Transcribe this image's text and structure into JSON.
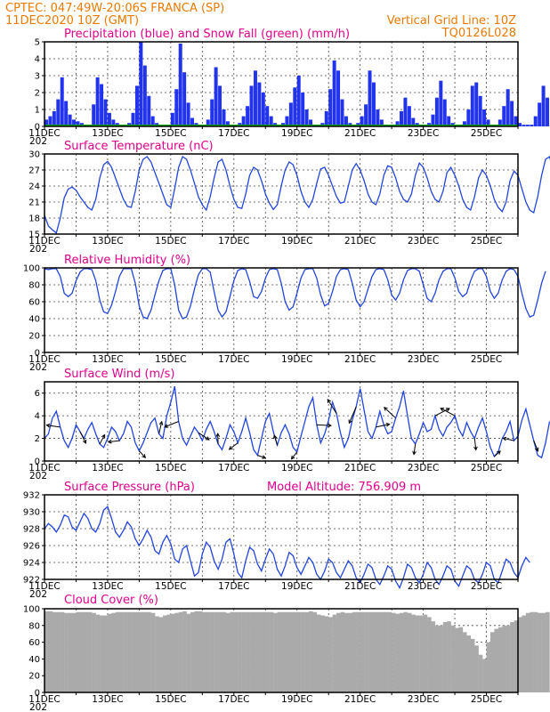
{
  "header": {
    "line1_left": "CPTEC:   047:49W-20:06S   FRANCA (SP)",
    "line2_left": "11DEC2020 10Z (GMT)",
    "line1_right": "Vertical Grid Line: 10Z",
    "line2_right": "TQ0126L028"
  },
  "x_axis": {
    "days": [
      "11DEC",
      "13DEC",
      "15DEC",
      "17DEC",
      "19DEC",
      "21DEC",
      "23DEC",
      "25DEC"
    ],
    "fragment": "202"
  },
  "colors": {
    "header": "#e87a00",
    "panel_title": "#e0008c",
    "precip": "#2233ee",
    "snow": "#00aa00",
    "line": "#2244dd",
    "cloud": "#aaaaaa"
  },
  "chart_data": [
    {
      "type": "bar",
      "name": "precipitation",
      "title": "Precipitation (blue) and Snow Fall (green) (mm/h)",
      "ylim": [
        0,
        5
      ],
      "yticks": [
        0,
        1,
        2,
        3,
        4,
        5
      ],
      "step_hours": 3,
      "values": [
        0.4,
        0.6,
        0.9,
        1.6,
        2.9,
        1.5,
        0.7,
        0.4,
        0.3,
        0.2,
        0.1,
        0.1,
        1.3,
        2.9,
        2.5,
        1.6,
        0.8,
        0.4,
        0.2,
        0.1,
        0.1,
        0.2,
        0.8,
        2.4,
        5.0,
        3.6,
        1.8,
        0.6,
        0.2,
        0.1,
        0.1,
        0.1,
        0.8,
        2.2,
        4.9,
        3.2,
        1.4,
        0.5,
        0.2,
        0.1,
        0.1,
        0.4,
        1.6,
        3.5,
        2.4,
        1.0,
        0.3,
        0.1,
        0.1,
        0.2,
        0.6,
        1.2,
        2.4,
        3.3,
        2.6,
        2.0,
        1.2,
        0.6,
        0.2,
        0.1,
        0.2,
        0.6,
        1.4,
        2.3,
        3.0,
        2.0,
        1.0,
        0.4,
        0.1,
        0.1,
        0.2,
        0.9,
        2.2,
        3.9,
        3.3,
        1.6,
        0.6,
        0.2,
        0.1,
        0.2,
        0.6,
        1.3,
        3.3,
        2.6,
        1.0,
        0.4,
        0.1,
        0.1,
        0.1,
        0.3,
        0.9,
        1.7,
        1.2,
        0.5,
        0.2,
        0.1,
        0.1,
        0.2,
        0.7,
        1.7,
        2.7,
        1.6,
        0.6,
        0.2,
        0.1,
        0.1,
        0.3,
        1.0,
        2.4,
        2.6,
        1.8,
        1.0,
        0.4,
        0.1,
        0.1,
        0.4,
        1.2,
        2.2,
        1.5,
        0.6,
        0.2,
        0.1,
        0.1,
        0.1,
        0.6,
        1.4,
        2.4,
        1.7
      ],
      "snow_values": "all zero"
    },
    {
      "type": "line",
      "name": "temperature",
      "title": "Surface Temperature (nC)",
      "ylim": [
        15,
        30
      ],
      "yticks": [
        15,
        18,
        21,
        24,
        27,
        30
      ],
      "step_hours": 3,
      "values": [
        18.5,
        16.5,
        15.8,
        15.2,
        18.0,
        21.8,
        23.4,
        23.8,
        23.2,
        22.0,
        21.0,
        20.0,
        19.5,
        21.5,
        25.5,
        28.0,
        28.6,
        27.5,
        25.5,
        23.5,
        21.5,
        20.2,
        20.0,
        23.0,
        27.0,
        29.0,
        29.5,
        28.5,
        26.5,
        24.5,
        22.5,
        20.5,
        20.0,
        23.5,
        27.5,
        29.5,
        29.0,
        27.0,
        24.5,
        22.0,
        20.5,
        19.5,
        22.0,
        25.5,
        28.5,
        29.0,
        27.0,
        24.0,
        21.5,
        20.0,
        19.8,
        22.5,
        26.0,
        27.5,
        27.0,
        25.0,
        22.5,
        20.8,
        19.6,
        20.5,
        24.0,
        27.0,
        28.5,
        28.0,
        26.0,
        23.0,
        21.0,
        20.0,
        21.5,
        24.5,
        27.2,
        27.5,
        26.0,
        24.0,
        22.0,
        20.8,
        21.0,
        24.0,
        27.0,
        28.2,
        27.0,
        25.0,
        22.5,
        21.0,
        20.5,
        22.5,
        26.0,
        27.8,
        27.5,
        25.5,
        23.0,
        21.5,
        21.0,
        22.5,
        26.0,
        28.3,
        27.5,
        25.5,
        23.0,
        21.5,
        21.0,
        23.0,
        26.5,
        27.5,
        26.0,
        24.0,
        21.5,
        20.0,
        19.5,
        22.0,
        25.5,
        27.0,
        26.0,
        24.0,
        21.5,
        20.0,
        19.2,
        21.0,
        25.0,
        26.8,
        26.0,
        23.5,
        21.0,
        19.5,
        19.0,
        22.0,
        26.0,
        29.0,
        29.5,
        26.5
      ]
    },
    {
      "type": "line",
      "name": "humidity",
      "title": "Relative Humidity (%)",
      "ylim": [
        0,
        100
      ],
      "yticks": [
        0,
        20,
        40,
        60,
        80,
        100
      ],
      "step_hours": 3,
      "values": [
        99,
        98,
        99,
        99,
        90,
        70,
        66,
        70,
        85,
        95,
        99,
        99,
        98,
        85,
        62,
        48,
        46,
        56,
        72,
        90,
        99,
        99,
        99,
        82,
        55,
        42,
        40,
        50,
        68,
        85,
        97,
        99,
        99,
        80,
        50,
        40,
        42,
        55,
        75,
        92,
        99,
        99,
        95,
        72,
        50,
        42,
        48,
        66,
        85,
        97,
        99,
        98,
        84,
        66,
        64,
        72,
        88,
        98,
        99,
        98,
        82,
        60,
        50,
        54,
        70,
        88,
        98,
        99,
        99,
        88,
        68,
        55,
        58,
        72,
        90,
        98,
        99,
        98,
        82,
        62,
        54,
        60,
        75,
        90,
        98,
        99,
        98,
        86,
        68,
        62,
        70,
        86,
        97,
        99,
        99,
        96,
        80,
        64,
        60,
        70,
        86,
        96,
        99,
        99,
        88,
        72,
        66,
        70,
        85,
        96,
        99,
        99,
        90,
        72,
        64,
        70,
        86,
        96,
        99,
        98,
        90,
        70,
        52,
        42,
        44,
        62,
        82,
        96
      ]
    },
    {
      "type": "line",
      "name": "wind",
      "title": "Surface Wind (m/s)",
      "ylim": [
        0,
        7
      ],
      "yticks": [
        0,
        2,
        4,
        6
      ],
      "step_hours": 3,
      "values": [
        2.0,
        2.4,
        3.8,
        4.4,
        3.0,
        1.8,
        1.2,
        2.0,
        3.2,
        2.6,
        2.0,
        2.8,
        3.4,
        2.4,
        1.5,
        1.2,
        2.0,
        3.0,
        2.6,
        1.8,
        2.4,
        3.5,
        3.0,
        1.6,
        0.9,
        1.6,
        2.5,
        3.4,
        3.8,
        2.4,
        2.0,
        4.0,
        5.2,
        6.6,
        3.5,
        2.0,
        1.4,
        2.2,
        3.0,
        2.5,
        1.8,
        2.8,
        3.5,
        2.6,
        1.5,
        1.0,
        2.0,
        3.2,
        2.6,
        1.6,
        2.6,
        3.8,
        2.5,
        1.0,
        0.5,
        2.0,
        3.5,
        4.2,
        2.6,
        1.4,
        2.5,
        3.2,
        2.4,
        1.2,
        0.8,
        2.2,
        3.5,
        4.8,
        5.6,
        3.2,
        1.6,
        2.4,
        3.6,
        5.2,
        4.2,
        2.5,
        1.2,
        2.0,
        3.6,
        4.8,
        6.4,
        4.5,
        2.6,
        2.0,
        3.0,
        4.4,
        3.2,
        2.4,
        2.6,
        3.8,
        4.8,
        6.2,
        4.0,
        2.0,
        1.5,
        2.4,
        3.4,
        2.6,
        2.8,
        4.0,
        2.8,
        2.2,
        3.0,
        3.4,
        4.0,
        2.8,
        2.2,
        3.4,
        2.6,
        2.0,
        3.0,
        3.8,
        2.6,
        1.2,
        0.4,
        0.8,
        2.0,
        2.6,
        3.5,
        1.8,
        2.2,
        3.6,
        4.6,
        3.2,
        1.8,
        0.5,
        0.3,
        1.6,
        3.5
      ]
    },
    {
      "type": "line",
      "name": "pressure",
      "title": "Surface Pressure (hPa)",
      "annotation": "Model Altitude: 756.909 m",
      "ylim": [
        922,
        932
      ],
      "yticks": [
        922,
        924,
        926,
        928,
        930,
        932
      ],
      "step_hours": 3,
      "values": [
        928.0,
        928.6,
        928.2,
        927.6,
        928.4,
        929.6,
        929.4,
        928.2,
        927.8,
        928.8,
        929.8,
        929.2,
        928.0,
        927.6,
        928.6,
        930.2,
        930.6,
        929.2,
        927.6,
        927.0,
        927.8,
        928.8,
        928.2,
        926.8,
        926.0,
        926.8,
        927.8,
        927.0,
        925.4,
        925.0,
        926.4,
        927.2,
        926.2,
        924.4,
        924.0,
        925.6,
        926.0,
        924.2,
        922.4,
        922.8,
        925.0,
        926.4,
        925.8,
        924.2,
        923.2,
        924.4,
        926.4,
        926.8,
        925.0,
        922.8,
        922.2,
        924.2,
        925.8,
        925.4,
        923.8,
        923.0,
        924.4,
        925.6,
        925.0,
        923.2,
        922.4,
        923.6,
        925.2,
        924.8,
        923.4,
        922.6,
        923.6,
        924.6,
        924.0,
        922.6,
        922.0,
        923.0,
        924.4,
        924.0,
        922.8,
        922.2,
        923.2,
        924.2,
        923.6,
        922.2,
        921.6,
        922.6,
        923.8,
        923.4,
        922.0,
        921.4,
        922.4,
        923.6,
        923.2,
        921.8,
        921.0,
        922.2,
        923.8,
        923.4,
        922.2,
        921.6,
        922.6,
        924.0,
        923.4,
        922.0,
        921.4,
        922.4,
        923.6,
        923.2,
        921.8,
        921.2,
        922.4,
        923.6,
        923.2,
        922.0,
        921.6,
        922.6,
        924.0,
        923.6,
        922.0,
        921.6,
        923.0,
        924.4,
        924.0,
        922.8,
        922.2,
        923.6,
        924.6,
        924.0
      ]
    },
    {
      "type": "bar",
      "name": "cloud",
      "title": "Cloud Cover (%)",
      "ylim": [
        0,
        100
      ],
      "yticks": [
        0,
        20,
        40,
        60,
        80,
        100
      ],
      "step_hours": 3,
      "values": [
        97,
        97,
        96,
        96,
        96,
        95,
        95,
        95,
        96,
        96,
        96,
        96,
        95,
        93,
        92,
        92,
        94,
        95,
        96,
        96,
        96,
        96,
        96,
        96,
        96,
        96,
        96,
        95,
        91,
        90,
        92,
        93,
        94,
        95,
        96,
        97,
        94,
        96,
        97,
        97,
        96,
        96,
        96,
        96,
        96,
        96,
        95,
        96,
        96,
        96,
        96,
        96,
        96,
        96,
        96,
        96,
        96,
        96,
        95,
        96,
        96,
        96,
        96,
        96,
        96,
        96,
        96,
        97,
        96,
        93,
        92,
        91,
        90,
        93,
        95,
        96,
        95,
        95,
        96,
        96,
        96,
        96,
        96,
        96,
        96,
        96,
        96,
        96,
        95,
        94,
        95,
        96,
        95,
        93,
        92,
        92,
        93,
        90,
        85,
        80,
        80,
        84,
        85,
        80,
        77,
        78,
        72,
        68,
        64,
        56,
        45,
        40,
        60,
        72,
        76,
        78,
        80,
        80,
        84,
        86,
        90,
        92,
        95,
        96,
        96,
        95,
        95,
        96
      ]
    }
  ]
}
